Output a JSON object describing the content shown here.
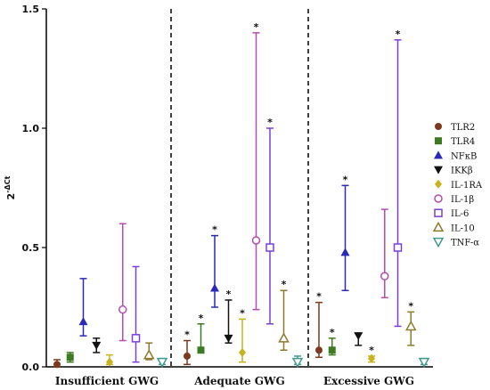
{
  "chart_data": {
    "type": "scatter",
    "ylabel_base": "2",
    "ylabel_sup": "-ΔCt",
    "ylim": [
      0,
      1.5
    ],
    "yticks": [
      {
        "value": 0,
        "label": "0.0"
      },
      {
        "value": 0.5,
        "label": "0.5"
      },
      {
        "value": 1.0,
        "label": "1.0"
      },
      {
        "value": 1.5,
        "label": "1.5"
      }
    ],
    "groups": [
      "Insufficient GWG",
      "Adequate GWG",
      "Excessive GWG"
    ],
    "legend_position": "right",
    "series": [
      {
        "name": "TLR2",
        "marker": "circle-filled",
        "color": "#7b3a1e",
        "points": [
          {
            "y": 0.01,
            "low": 0.0,
            "high": 0.03,
            "star": false
          },
          {
            "y": 0.045,
            "low": 0.01,
            "high": 0.11,
            "star": true
          },
          {
            "y": 0.07,
            "low": 0.04,
            "high": 0.27,
            "star": true
          }
        ]
      },
      {
        "name": "TLR4",
        "marker": "square-filled",
        "color": "#3e7a1f",
        "points": [
          {
            "y": 0.04,
            "low": 0.02,
            "high": 0.06,
            "star": false
          },
          {
            "y": 0.07,
            "low": 0.06,
            "high": 0.18,
            "star": true
          },
          {
            "y": 0.07,
            "low": 0.05,
            "high": 0.12,
            "star": true
          }
        ]
      },
      {
        "name": "NFκB",
        "marker": "triangle-up-filled",
        "color": "#2a2ab8",
        "points": [
          {
            "y": 0.19,
            "low": 0.13,
            "high": 0.37,
            "star": false
          },
          {
            "y": 0.33,
            "low": 0.25,
            "high": 0.55,
            "star": true
          },
          {
            "y": 0.48,
            "low": 0.32,
            "high": 0.76,
            "star": true
          }
        ]
      },
      {
        "name": "IKKβ",
        "marker": "triangle-down-filled",
        "color": "#111111",
        "points": [
          {
            "y": 0.09,
            "low": 0.06,
            "high": 0.12,
            "star": false
          },
          {
            "y": 0.12,
            "low": 0.1,
            "high": 0.28,
            "star": true
          },
          {
            "y": 0.13,
            "low": 0.09,
            "high": 0.14,
            "star": false
          }
        ]
      },
      {
        "name": "IL-1RA",
        "marker": "diamond-filled",
        "color": "#c9b21a",
        "points": [
          {
            "y": 0.02,
            "low": 0.01,
            "high": 0.05,
            "star": false
          },
          {
            "y": 0.06,
            "low": 0.02,
            "high": 0.2,
            "star": true
          },
          {
            "y": 0.035,
            "low": 0.02,
            "high": 0.045,
            "star": true
          }
        ]
      },
      {
        "name": "IL-1β",
        "marker": "circle-open",
        "color": "#b64bb1",
        "points": [
          {
            "y": 0.24,
            "low": 0.11,
            "high": 0.6,
            "star": false
          },
          {
            "y": 0.53,
            "low": 0.24,
            "high": 1.4,
            "star": true
          },
          {
            "y": 0.38,
            "low": 0.29,
            "high": 0.66,
            "star": false
          }
        ]
      },
      {
        "name": "IL-6",
        "marker": "square-open",
        "color": "#7b3fd8",
        "points": [
          {
            "y": 0.12,
            "low": 0.02,
            "high": 0.42,
            "star": false
          },
          {
            "y": 0.5,
            "low": 0.18,
            "high": 1.0,
            "star": true
          },
          {
            "y": 0.5,
            "low": 0.17,
            "high": 1.37,
            "star": true
          }
        ]
      },
      {
        "name": "IL-10",
        "marker": "triangle-up-open",
        "color": "#8c7a2b",
        "points": [
          {
            "y": 0.05,
            "low": 0.03,
            "high": 0.1,
            "star": false
          },
          {
            "y": 0.12,
            "low": 0.07,
            "high": 0.32,
            "star": true
          },
          {
            "y": 0.17,
            "low": 0.09,
            "high": 0.23,
            "star": true
          }
        ]
      },
      {
        "name": "TNF-α",
        "marker": "triangle-down-open",
        "color": "#3f9a8c",
        "points": [
          {
            "y": 0.02,
            "low": 0.01,
            "high": 0.035,
            "star": false
          },
          {
            "y": 0.02,
            "low": 0.01,
            "high": 0.045,
            "star": false
          },
          {
            "y": 0.02,
            "low": 0.01,
            "high": 0.035,
            "star": false
          }
        ]
      }
    ]
  }
}
